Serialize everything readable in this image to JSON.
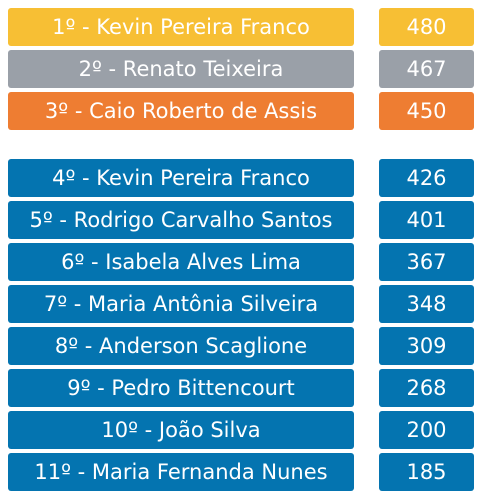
{
  "colors": {
    "gold": "#f7bf34",
    "silver": "#9aa0a8",
    "bronze": "#ee7d32",
    "blue": "#0474b0",
    "text": "#ffffff"
  },
  "ranking": [
    {
      "name": "1º - Kevin Pereira Franco",
      "score": "480"
    },
    {
      "name": "2º - Renato Teixeira",
      "score": "467"
    },
    {
      "name": "3º - Caio Roberto de Assis",
      "score": "450"
    },
    {
      "name": "4º - Kevin Pereira Franco",
      "score": "426"
    },
    {
      "name": "5º - Rodrigo Carvalho Santos",
      "score": "401"
    },
    {
      "name": "6º - Isabela Alves Lima",
      "score": "367"
    },
    {
      "name": "7º - Maria Antônia Silveira",
      "score": "348"
    },
    {
      "name": "8º - Anderson Scaglione",
      "score": "309"
    },
    {
      "name": "9º - Pedro Bittencourt",
      "score": "268"
    },
    {
      "name": "10º - João Silva",
      "score": "200"
    },
    {
      "name": "11º - Maria Fernanda Nunes",
      "score": "185"
    }
  ]
}
